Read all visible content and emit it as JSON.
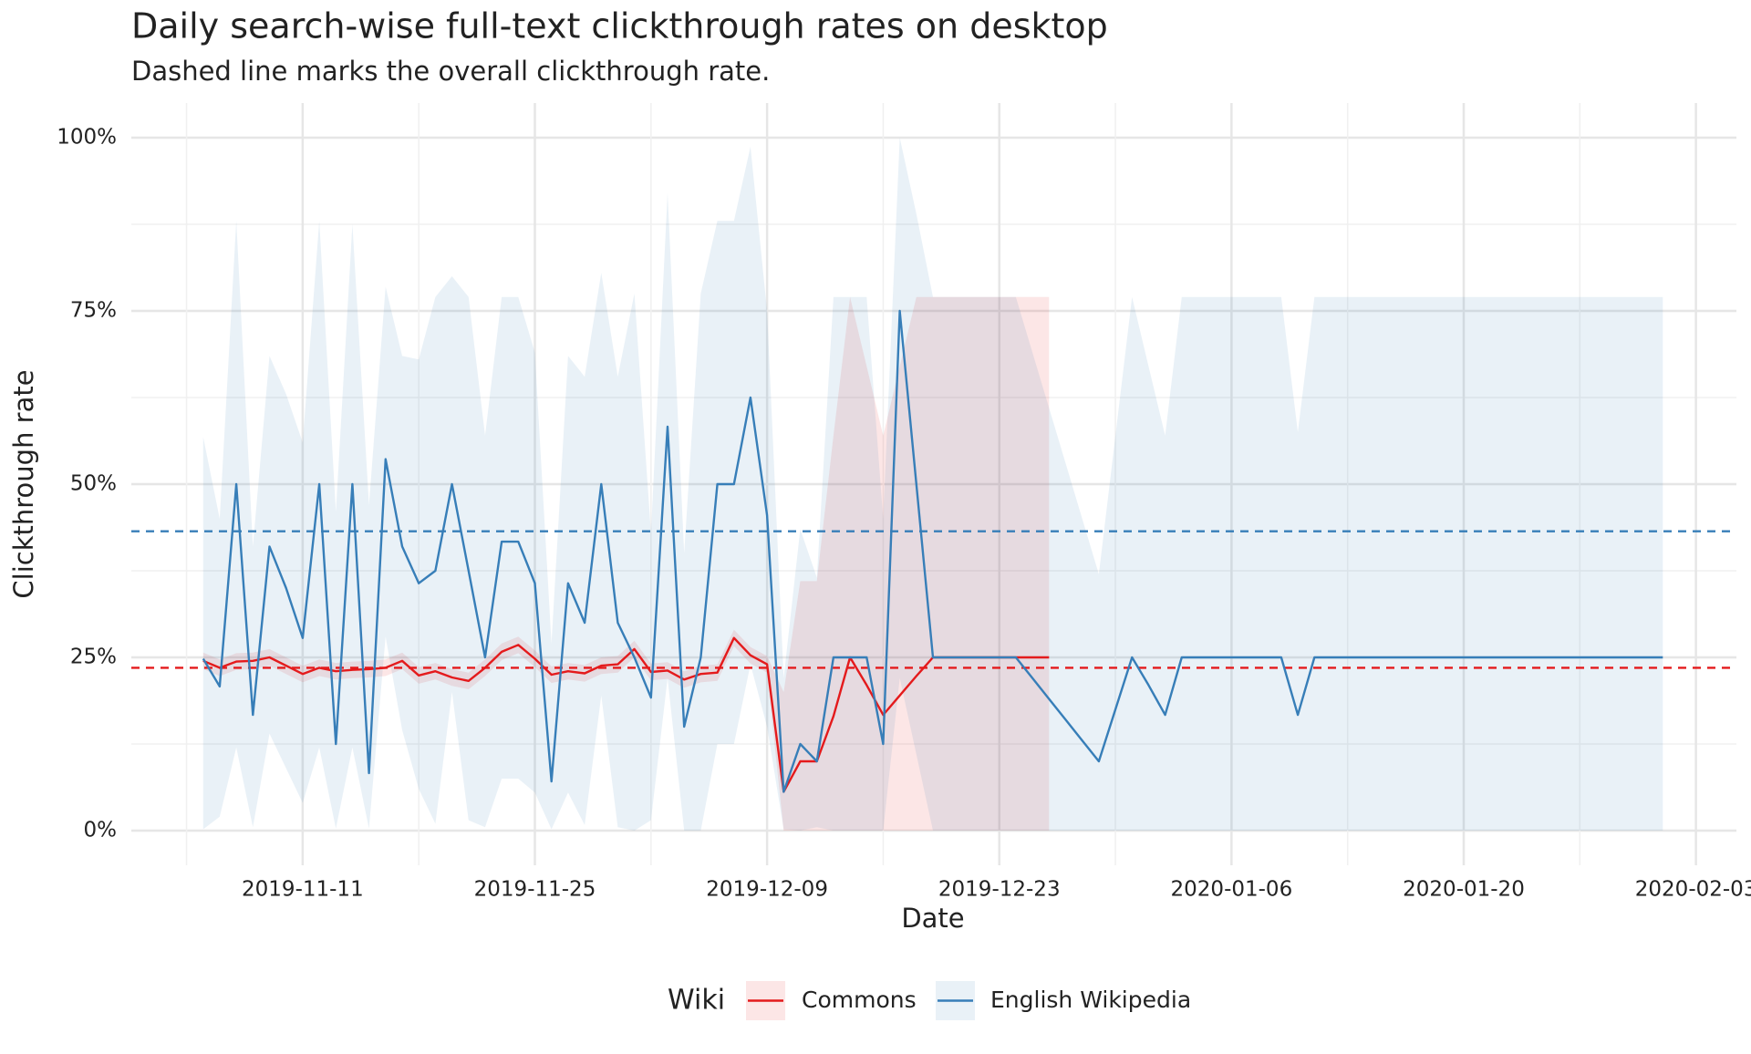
{
  "chart_data": {
    "type": "line",
    "title": "Daily search-wise full-text clickthrough rates on desktop",
    "subtitle": "Dashed line marks the overall clickthrough rate.",
    "x_label": "Date",
    "y_label": "Clickthrough rate",
    "legend_title": "Wiki",
    "legend_position": "bottom",
    "grid": true,
    "xlim": [
      "2019-11-01",
      "2020-02-05"
    ],
    "xticks": [
      "2019-11-11",
      "2019-11-25",
      "2019-12-09",
      "2019-12-23",
      "2020-01-06",
      "2020-01-20",
      "2020-02-03"
    ],
    "ylim": [
      -5,
      105
    ],
    "yticks": [
      {
        "value": 0,
        "label": "0%"
      },
      {
        "value": 25,
        "label": "25%"
      },
      {
        "value": 50,
        "label": "50%"
      },
      {
        "value": 75,
        "label": "75%"
      },
      {
        "value": 100,
        "label": "100%"
      }
    ],
    "x": [
      "2019-11-05",
      "2019-11-06",
      "2019-11-07",
      "2019-11-08",
      "2019-11-09",
      "2019-11-10",
      "2019-11-11",
      "2019-11-12",
      "2019-11-13",
      "2019-11-14",
      "2019-11-15",
      "2019-11-16",
      "2019-11-17",
      "2019-11-18",
      "2019-11-19",
      "2019-11-20",
      "2019-11-21",
      "2019-11-22",
      "2019-11-23",
      "2019-11-24",
      "2019-11-25",
      "2019-11-26",
      "2019-11-27",
      "2019-11-28",
      "2019-11-29",
      "2019-11-30",
      "2019-12-01",
      "2019-12-02",
      "2019-12-03",
      "2019-12-04",
      "2019-12-05",
      "2019-12-06",
      "2019-12-07",
      "2019-12-08",
      "2019-12-09",
      "2019-12-10",
      "2019-12-11",
      "2019-12-12",
      "2019-12-13",
      "2019-12-14",
      "2019-12-15",
      "2019-12-16",
      "2019-12-17",
      "2019-12-18",
      "2019-12-19",
      "2019-12-20",
      "2019-12-21",
      "2019-12-22",
      "2019-12-23",
      "2019-12-24",
      "2019-12-25",
      "2019-12-26",
      "2019-12-27",
      "2019-12-28",
      "2019-12-29",
      "2019-12-30",
      "2019-12-31",
      "2020-01-01",
      "2020-01-02",
      "2020-01-03",
      "2020-01-04",
      "2020-01-05",
      "2020-01-06",
      "2020-01-07",
      "2020-01-08",
      "2020-01-09",
      "2020-01-10",
      "2020-01-11",
      "2020-01-12",
      "2020-01-13",
      "2020-01-14",
      "2020-01-15",
      "2020-01-16",
      "2020-01-17",
      "2020-01-18",
      "2020-01-19",
      "2020-01-20",
      "2020-01-21",
      "2020-01-22",
      "2020-01-23",
      "2020-01-24",
      "2020-01-25",
      "2020-01-26",
      "2020-01-27",
      "2020-01-28",
      "2020-01-29",
      "2020-01-30",
      "2020-01-31",
      "2020-02-01"
    ],
    "series": [
      {
        "name": "Commons",
        "color": "#e41a1c",
        "overall": 23.5,
        "values": [
          24.5,
          23.5,
          24.4,
          24.5,
          25,
          23.8,
          22.6,
          23.5,
          23,
          23.2,
          23.3,
          23.5,
          24.5,
          22.4,
          23,
          22.1,
          21.6,
          23.5,
          25.8,
          26.8,
          24.8,
          22.5,
          23,
          22.7,
          23.8,
          24,
          26.2,
          22.9,
          23.1,
          21.8,
          22.6,
          22.8,
          27.8,
          25.3,
          24,
          5.6,
          10,
          10,
          16.5,
          25,
          21,
          16.7,
          19.5,
          22.3,
          25,
          25,
          25,
          25,
          25,
          25,
          25,
          25,
          null,
          null,
          null,
          null,
          null,
          null,
          null,
          null,
          null,
          null,
          null,
          null,
          null,
          null,
          null,
          null,
          null,
          null,
          null,
          null,
          null,
          null,
          null,
          null,
          null,
          null,
          null,
          null,
          null,
          null,
          null,
          null,
          null,
          null,
          null,
          null,
          null
        ],
        "lower": [
          23.3,
          22.3,
          23.2,
          23.3,
          23.8,
          22.6,
          21.4,
          22.3,
          21.8,
          22,
          22.1,
          22.3,
          23.3,
          21.2,
          21.8,
          20.9,
          20.4,
          22.3,
          24.6,
          25.6,
          23.6,
          21.3,
          21.8,
          21.5,
          22.6,
          22.8,
          25,
          21.7,
          21.9,
          20.6,
          21.4,
          21.6,
          26.6,
          24.1,
          22.8,
          0,
          0,
          0,
          0,
          0,
          0,
          0,
          0,
          0,
          0,
          0,
          0,
          0,
          0,
          0,
          0,
          0,
          null,
          null,
          null,
          null,
          null,
          null,
          null,
          null,
          null,
          null,
          null,
          null,
          null,
          null,
          null,
          null,
          null,
          null,
          null,
          null,
          null,
          null,
          null,
          null,
          null,
          null,
          null,
          null,
          null,
          null,
          null,
          null,
          null,
          null,
          null,
          null,
          null
        ],
        "upper": [
          25.7,
          24.7,
          25.6,
          25.7,
          26.2,
          25,
          23.8,
          24.7,
          24.2,
          24.4,
          24.5,
          24.7,
          25.7,
          23.6,
          24.2,
          23.3,
          22.8,
          24.7,
          27,
          28,
          26,
          23.7,
          24.2,
          23.9,
          25,
          25.2,
          27.4,
          24.1,
          24.3,
          23,
          23.8,
          24,
          29,
          26.5,
          25.2,
          20,
          36,
          36,
          57,
          77,
          67,
          57,
          67,
          77,
          77,
          77,
          77,
          77,
          77,
          77,
          77,
          77,
          null,
          null,
          null,
          null,
          null,
          null,
          null,
          null,
          null,
          null,
          null,
          null,
          null,
          null,
          null,
          null,
          null,
          null,
          null,
          null,
          null,
          null,
          null,
          null,
          null,
          null,
          null,
          null,
          null,
          null,
          null,
          null,
          null,
          null,
          null,
          null,
          null
        ]
      },
      {
        "name": "English Wikipedia",
        "color": "#377eb8",
        "overall": 43.2,
        "values": [
          24.8,
          20.8,
          50,
          16.7,
          41,
          35,
          27.8,
          50,
          12.5,
          50,
          8.3,
          53.6,
          41,
          35.7,
          37.5,
          50,
          37.5,
          25,
          41.7,
          41.7,
          35.7,
          7.1,
          35.7,
          30,
          50,
          30,
          25,
          19.2,
          58.3,
          15,
          25,
          50,
          50,
          62.5,
          45.5,
          5.6,
          12.5,
          10,
          25,
          25,
          25,
          12.5,
          75,
          50,
          25,
          25,
          25,
          25,
          25,
          25,
          22,
          19,
          16,
          13,
          10,
          17.5,
          25,
          21,
          16.7,
          25,
          25,
          25,
          25,
          25,
          25,
          25,
          16.7,
          25,
          25,
          25,
          25,
          25,
          25,
          25,
          25,
          25,
          25,
          25,
          25,
          25,
          25,
          25,
          25,
          25,
          25,
          25,
          25,
          25,
          25
        ],
        "lower": [
          0.2,
          2,
          12,
          0.5,
          14,
          9,
          4,
          12,
          0.3,
          12,
          0.3,
          28,
          14.5,
          6,
          1,
          20,
          1.5,
          0.5,
          7.5,
          7.5,
          5.5,
          0.2,
          5.5,
          0.8,
          19.5,
          0.5,
          0,
          1.5,
          22,
          0,
          0,
          12.5,
          12.5,
          24,
          15,
          0.2,
          0,
          0.5,
          0,
          0,
          0,
          0,
          22,
          11,
          0,
          0,
          0,
          0,
          0,
          0,
          0,
          0,
          0,
          0,
          0,
          0,
          0,
          0,
          0,
          0,
          0,
          0,
          0,
          0,
          0,
          0,
          0,
          0,
          0,
          0,
          0,
          0,
          0,
          0,
          0,
          0,
          0,
          0,
          0,
          0,
          0,
          0,
          0,
          0,
          0,
          0,
          0,
          0,
          0
        ],
        "upper": [
          56.8,
          45,
          88,
          41,
          68.5,
          63,
          56,
          88,
          46,
          87.5,
          47,
          78.5,
          68.5,
          68,
          77,
          80,
          77,
          57,
          77,
          77,
          69,
          27,
          68.5,
          65.5,
          80.5,
          65.5,
          77.5,
          43,
          92,
          40,
          77.5,
          88,
          88,
          98.7,
          75,
          22,
          43.5,
          36.5,
          77,
          77,
          77,
          45,
          100,
          89,
          77,
          77,
          77,
          77,
          77,
          77,
          69,
          61,
          53,
          45,
          37,
          57,
          77,
          67,
          57,
          77,
          77,
          77,
          77,
          77,
          77,
          77,
          57.5,
          77,
          77,
          77,
          77,
          77,
          77,
          77,
          77,
          77,
          77,
          77,
          77,
          77,
          77,
          77,
          77,
          77,
          77,
          77,
          77,
          77,
          77
        ]
      }
    ]
  }
}
